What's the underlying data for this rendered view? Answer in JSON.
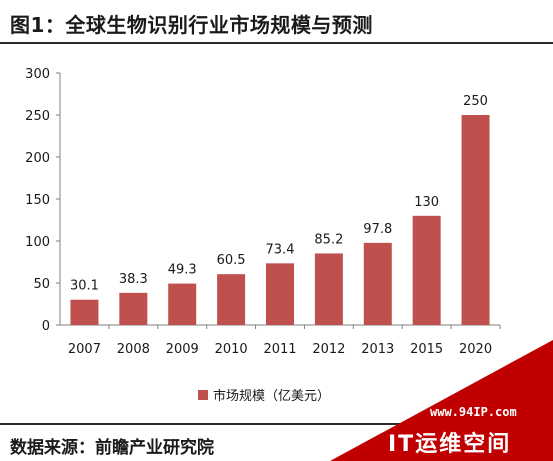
{
  "title": "图1：全球生物识别行业市场规模与预测",
  "source": "数据来源：前瞻产业研究院",
  "watermark": {
    "url": "www.94IP.com",
    "name": "IT运维空间",
    "color": "#c00000"
  },
  "chart_data": {
    "type": "bar",
    "categories": [
      "2007",
      "2008",
      "2009",
      "2010",
      "2011",
      "2012",
      "2013",
      "2015",
      "2020"
    ],
    "series": [
      {
        "name": "市场规模（亿美元）",
        "values": [
          30.1,
          38.3,
          49.3,
          60.5,
          73.4,
          85.2,
          97.8,
          130,
          250
        ],
        "labels": [
          "30.1",
          "38.3",
          "49.3",
          "60.5",
          "73.4",
          "85.2",
          "97.8",
          "130",
          "250"
        ],
        "color": "#c0504d"
      }
    ],
    "yticks": [
      "0",
      "50",
      "100",
      "150",
      "200",
      "250",
      "300"
    ],
    "ylim": [
      0,
      300
    ],
    "grid": false,
    "legend": "bottom-center"
  }
}
